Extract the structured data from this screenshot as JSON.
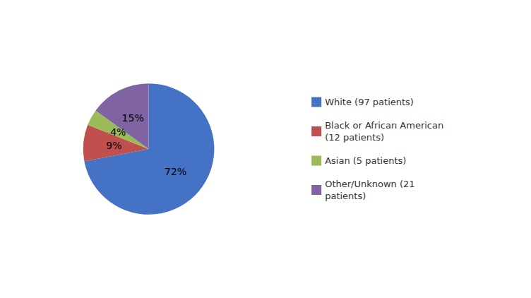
{
  "chart_data": {
    "type": "pie",
    "categories": [
      "White (97 patients)",
      "Black or African American\n(12 patients)",
      "Asian (5 patients)",
      "Other/Unknown (21\npatients)"
    ],
    "values": [
      72,
      9,
      4,
      15
    ],
    "value_labels": [
      "72%",
      "9%",
      "4%",
      "15%"
    ],
    "colors": [
      "#4472C4",
      "#C0504D",
      "#9BBB59",
      "#8064A2"
    ],
    "data_labels": true,
    "legend": "right"
  }
}
